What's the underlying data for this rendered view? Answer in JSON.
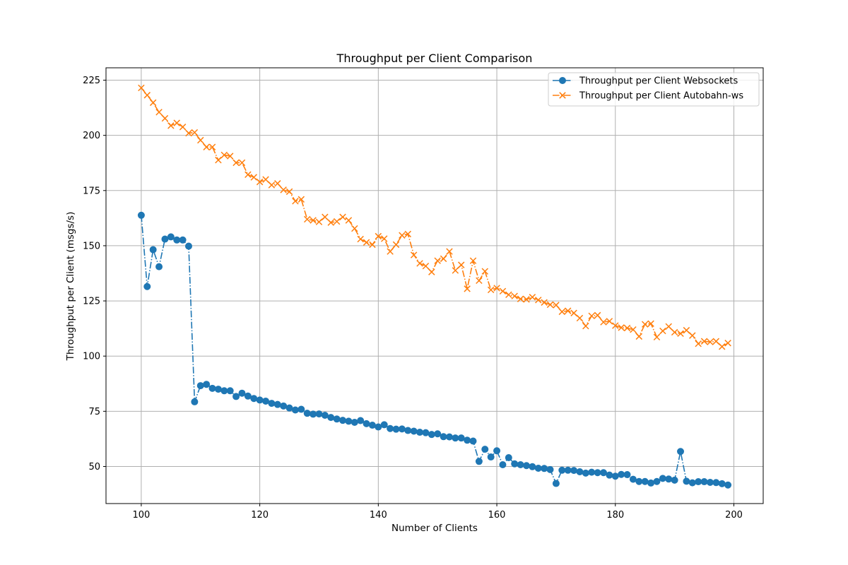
{
  "chart_data": {
    "type": "line",
    "title": "Throughput per Client Comparison",
    "xlabel": "Number of Clients",
    "ylabel": "Throughput per Client (msgs/s)",
    "xlim": [
      94.05,
      204.95
    ],
    "ylim": [
      33.2,
      230.6
    ],
    "xticks": [
      100,
      120,
      140,
      160,
      180,
      200
    ],
    "yticks": [
      50,
      75,
      100,
      125,
      150,
      175,
      200,
      225
    ],
    "grid": true,
    "legend_position": "upper right",
    "x": [
      100,
      101,
      102,
      103,
      104,
      105,
      106,
      107,
      108,
      109,
      110,
      111,
      112,
      113,
      114,
      115,
      116,
      117,
      118,
      119,
      120,
      121,
      122,
      123,
      124,
      125,
      126,
      127,
      128,
      129,
      130,
      131,
      132,
      133,
      134,
      135,
      136,
      137,
      138,
      139,
      140,
      141,
      142,
      143,
      144,
      145,
      146,
      147,
      148,
      149,
      150,
      151,
      152,
      153,
      154,
      155,
      156,
      157,
      158,
      159,
      160,
      161,
      162,
      163,
      164,
      165,
      166,
      167,
      168,
      169,
      170,
      171,
      172,
      173,
      174,
      175,
      176,
      177,
      178,
      179,
      180,
      181,
      182,
      183,
      184,
      185,
      186,
      187,
      188,
      189,
      190,
      191,
      192,
      193,
      194,
      195,
      196,
      197,
      198,
      199
    ],
    "series": [
      {
        "name": "Throughput per Client Websockets",
        "color": "#1f77b4",
        "marker": "circle",
        "line_style": "dash-dot",
        "values": [
          163.8,
          131.5,
          148.2,
          140.5,
          153.0,
          154.0,
          152.6,
          152.6,
          149.8,
          79.3,
          86.6,
          87.2,
          85.4,
          85.0,
          84.3,
          84.3,
          81.7,
          83.2,
          81.9,
          80.8,
          80.1,
          79.6,
          78.6,
          78.1,
          77.4,
          76.5,
          75.6,
          75.9,
          74.1,
          73.7,
          73.8,
          73.2,
          72.2,
          71.5,
          70.9,
          70.5,
          70.0,
          70.8,
          69.4,
          68.7,
          67.9,
          68.9,
          67.2,
          66.9,
          67.0,
          66.3,
          66.0,
          65.5,
          65.3,
          64.5,
          64.8,
          63.5,
          63.4,
          62.9,
          62.9,
          61.9,
          61.5,
          52.3,
          57.8,
          54.3,
          57.1,
          50.8,
          54.0,
          51.2,
          50.8,
          50.4,
          49.9,
          49.2,
          49.1,
          48.6,
          42.3,
          48.3,
          48.3,
          48.2,
          47.6,
          47.0,
          47.4,
          47.2,
          47.2,
          46.1,
          45.6,
          46.4,
          46.3,
          44.2,
          43.2,
          43.2,
          42.5,
          43.2,
          44.6,
          44.3,
          43.8,
          56.8,
          43.3,
          42.6,
          43.1,
          43.1,
          42.8,
          42.7,
          42.2,
          41.6
        ]
      },
      {
        "name": "Throughput per Client Autobahn-ws",
        "color": "#ff7f0e",
        "marker": "x",
        "line_style": "dash-dot",
        "values": [
          221.5,
          218.2,
          214.8,
          210.5,
          207.7,
          204.4,
          205.6,
          203.8,
          201.0,
          201.3,
          197.8,
          194.7,
          194.7,
          188.8,
          191.1,
          190.6,
          187.6,
          187.6,
          182.2,
          181.0,
          178.9,
          180.0,
          177.5,
          178.2,
          175.3,
          174.5,
          170.2,
          171.0,
          162.0,
          161.5,
          160.8,
          163.0,
          160.5,
          161.0,
          163.0,
          161.5,
          157.8,
          153.0,
          151.5,
          150.5,
          154.3,
          153.2,
          147.4,
          150.5,
          154.7,
          155.3,
          145.8,
          142.0,
          140.8,
          138.1,
          143.2,
          144.1,
          147.4,
          138.8,
          141.3,
          130.5,
          143.2,
          134.2,
          138.4,
          130.0,
          130.8,
          129.4,
          127.8,
          127.2,
          125.9,
          125.7,
          126.7,
          125.4,
          124.3,
          123.3,
          123.1,
          120.1,
          120.5,
          119.5,
          117.2,
          113.6,
          118.2,
          118.5,
          115.4,
          115.8,
          113.8,
          112.9,
          112.7,
          112.0,
          108.9,
          114.4,
          114.7,
          108.6,
          111.4,
          113.4,
          110.8,
          110.2,
          111.7,
          109.3,
          105.6,
          106.7,
          106.4,
          106.7,
          104.3,
          105.9
        ]
      }
    ]
  }
}
